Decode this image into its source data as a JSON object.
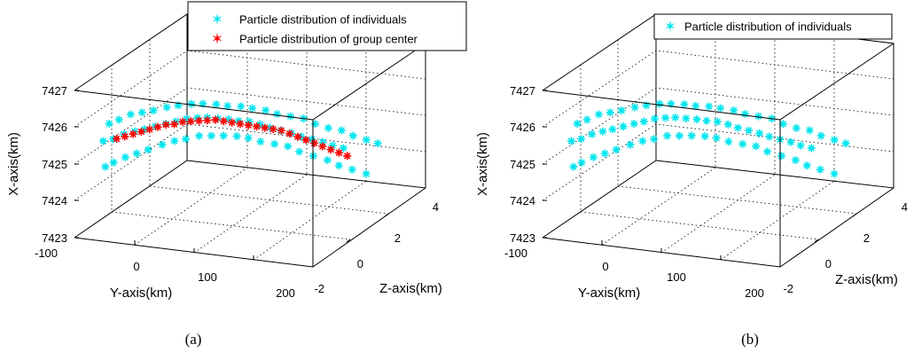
{
  "chart_data": [
    {
      "type": "scatter",
      "caption": "(a)",
      "xlabel": "Y-axis(km)",
      "ylabel": "Z-axis(km)",
      "zlabel": "X-axis(km)",
      "xlim": [
        -100,
        200
      ],
      "ylim": [
        -2,
        4
      ],
      "zlim": [
        7423,
        7427
      ],
      "xticks": [
        "-100",
        "0",
        "100",
        "200"
      ],
      "yticks": [
        "-2",
        "0",
        "2",
        "4"
      ],
      "zticks": [
        "7423",
        "7424",
        "7425",
        "7426",
        "7427"
      ],
      "grid": true,
      "legend_position": "top-right",
      "series": [
        {
          "name": "Particle distribution of individuals",
          "color": "#00e5ee",
          "marker": "star",
          "points": [
            [
              -80,
              -1.2,
              7424.7
            ],
            [
              -72,
              -1.1,
              7424.8
            ],
            [
              -62,
              -0.9,
              7424.9
            ],
            [
              -50,
              -0.8,
              7425.0
            ],
            [
              -38,
              -0.7,
              7425.1
            ],
            [
              -25,
              -0.5,
              7425.2
            ],
            [
              -12,
              -0.4,
              7425.3
            ],
            [
              0,
              -0.3,
              7425.35
            ],
            [
              12,
              -0.1,
              7425.4
            ],
            [
              25,
              0.0,
              7425.4
            ],
            [
              38,
              0.1,
              7425.4
            ],
            [
              50,
              0.3,
              7425.35
            ],
            [
              62,
              0.4,
              7425.3
            ],
            [
              75,
              0.5,
              7425.2
            ],
            [
              88,
              0.7,
              7425.1
            ],
            [
              100,
              0.9,
              7425.0
            ],
            [
              112,
              1.0,
              7424.85
            ],
            [
              125,
              1.2,
              7424.7
            ],
            [
              138,
              1.4,
              7424.55
            ],
            [
              150,
              1.5,
              7424.4
            ],
            [
              162,
              1.7,
              7424.25
            ],
            [
              175,
              1.9,
              7424.1
            ],
            [
              -80,
              -1.0,
              7425.8
            ],
            [
              -70,
              -0.9,
              7425.9
            ],
            [
              -60,
              -0.7,
              7426.0
            ],
            [
              -48,
              -0.6,
              7426.05
            ],
            [
              -36,
              -0.5,
              7426.1
            ],
            [
              -24,
              -0.3,
              7426.15
            ],
            [
              -12,
              -0.2,
              7426.2
            ],
            [
              0,
              0.0,
              7426.2
            ],
            [
              12,
              0.1,
              7426.2
            ],
            [
              24,
              0.3,
              7426.15
            ],
            [
              36,
              0.4,
              7426.1
            ],
            [
              48,
              0.6,
              7426.05
            ],
            [
              60,
              0.7,
              7426.0
            ],
            [
              72,
              0.9,
              7425.9
            ],
            [
              84,
              1.0,
              7425.8
            ],
            [
              96,
              1.2,
              7425.7
            ],
            [
              108,
              1.4,
              7425.6
            ],
            [
              120,
              1.5,
              7425.45
            ],
            [
              132,
              1.7,
              7425.3
            ],
            [
              144,
              1.9,
              7425.2
            ],
            [
              156,
              2.0,
              7425.05
            ],
            [
              168,
              2.2,
              7424.9
            ],
            [
              180,
              2.3,
              7424.8
            ],
            [
              -85,
              -1.1,
              7425.35
            ],
            [
              -75,
              -1.0,
              7425.4
            ],
            [
              -65,
              -0.85,
              7425.5
            ],
            [
              -55,
              -0.7,
              7425.55
            ],
            [
              -45,
              -0.6,
              7425.6
            ],
            [
              -35,
              -0.45,
              7425.65
            ],
            [
              -25,
              -0.3,
              7425.7
            ],
            [
              -15,
              -0.2,
              7425.75
            ],
            [
              -5,
              -0.05,
              7425.8
            ],
            [
              5,
              0.1,
              7425.8
            ],
            [
              15,
              0.2,
              7425.8
            ],
            [
              25,
              0.35,
              7425.75
            ],
            [
              35,
              0.5,
              7425.7
            ],
            [
              45,
              0.6,
              7425.65
            ],
            [
              55,
              0.75,
              7425.6
            ],
            [
              65,
              0.9,
              7425.5
            ],
            [
              75,
              1.0,
              7425.4
            ],
            [
              85,
              1.15,
              7425.3
            ],
            [
              95,
              1.3,
              7425.2
            ],
            [
              105,
              1.4,
              7425.1
            ],
            [
              115,
              1.55,
              7425.0
            ],
            [
              125,
              1.7,
              7424.9
            ],
            [
              135,
              1.8,
              7424.8
            ],
            [
              145,
              1.95,
              7424.7
            ]
          ]
        },
        {
          "name": "Particle distribution of group center",
          "color": "#ff0000",
          "marker": "star",
          "points": [
            [
              -80,
              -0.6,
              7425.25
            ],
            [
              -72,
              -0.5,
              7425.3
            ],
            [
              -64,
              -0.4,
              7425.35
            ],
            [
              -56,
              -0.3,
              7425.4
            ],
            [
              -48,
              -0.2,
              7425.45
            ],
            [
              -40,
              -0.1,
              7425.5
            ],
            [
              -32,
              0.0,
              7425.55
            ],
            [
              -24,
              0.1,
              7425.55
            ],
            [
              -16,
              0.2,
              7425.6
            ],
            [
              -8,
              0.3,
              7425.6
            ],
            [
              0,
              0.4,
              7425.6
            ],
            [
              8,
              0.5,
              7425.6
            ],
            [
              16,
              0.6,
              7425.6
            ],
            [
              24,
              0.7,
              7425.55
            ],
            [
              32,
              0.8,
              7425.5
            ],
            [
              40,
              0.9,
              7425.45
            ],
            [
              48,
              1.0,
              7425.4
            ],
            [
              56,
              1.1,
              7425.35
            ],
            [
              64,
              1.2,
              7425.3
            ],
            [
              72,
              1.3,
              7425.25
            ],
            [
              80,
              1.4,
              7425.2
            ],
            [
              88,
              1.5,
              7425.1
            ],
            [
              96,
              1.6,
              7425.0
            ],
            [
              104,
              1.7,
              7424.9
            ],
            [
              112,
              1.8,
              7424.8
            ],
            [
              120,
              1.9,
              7424.7
            ],
            [
              128,
              2.0,
              7424.6
            ],
            [
              136,
              2.1,
              7424.5
            ],
            [
              144,
              2.2,
              7424.4
            ]
          ]
        }
      ]
    },
    {
      "type": "scatter",
      "caption": "(b)",
      "xlabel": "Y-axis(km)",
      "ylabel": "Z-axis(km)",
      "zlabel": "X-axis(km)",
      "xlim": [
        -100,
        200
      ],
      "ylim": [
        -2,
        4
      ],
      "zlim": [
        7423,
        7427
      ],
      "xticks": [
        "-100",
        "0",
        "100",
        "200"
      ],
      "yticks": [
        "-2",
        "0",
        "2",
        "4"
      ],
      "zticks": [
        "7423",
        "7424",
        "7425",
        "7426",
        "7427"
      ],
      "grid": true,
      "legend_position": "top-right",
      "series": [
        {
          "name": "Particle distribution of individuals",
          "color": "#00e5ee",
          "marker": "star",
          "points": [
            [
              -80,
              -1.2,
              7424.7
            ],
            [
              -72,
              -1.1,
              7424.8
            ],
            [
              -62,
              -0.9,
              7424.9
            ],
            [
              -50,
              -0.8,
              7425.0
            ],
            [
              -38,
              -0.7,
              7425.1
            ],
            [
              -25,
              -0.5,
              7425.2
            ],
            [
              -12,
              -0.4,
              7425.3
            ],
            [
              0,
              -0.3,
              7425.35
            ],
            [
              12,
              -0.1,
              7425.4
            ],
            [
              25,
              0.0,
              7425.4
            ],
            [
              38,
              0.1,
              7425.4
            ],
            [
              50,
              0.3,
              7425.35
            ],
            [
              62,
              0.4,
              7425.3
            ],
            [
              75,
              0.5,
              7425.2
            ],
            [
              88,
              0.7,
              7425.1
            ],
            [
              100,
              0.9,
              7425.0
            ],
            [
              112,
              1.0,
              7424.85
            ],
            [
              125,
              1.2,
              7424.7
            ],
            [
              138,
              1.4,
              7424.55
            ],
            [
              150,
              1.5,
              7424.4
            ],
            [
              162,
              1.7,
              7424.25
            ],
            [
              175,
              1.9,
              7424.1
            ],
            [
              -80,
              -1.0,
              7425.8
            ],
            [
              -70,
              -0.9,
              7425.9
            ],
            [
              -60,
              -0.7,
              7426.0
            ],
            [
              -48,
              -0.6,
              7426.05
            ],
            [
              -36,
              -0.5,
              7426.1
            ],
            [
              -24,
              -0.3,
              7426.15
            ],
            [
              -12,
              -0.2,
              7426.2
            ],
            [
              0,
              0.0,
              7426.2
            ],
            [
              12,
              0.1,
              7426.2
            ],
            [
              24,
              0.3,
              7426.15
            ],
            [
              36,
              0.4,
              7426.1
            ],
            [
              48,
              0.6,
              7426.05
            ],
            [
              60,
              0.7,
              7426.0
            ],
            [
              72,
              0.9,
              7425.9
            ],
            [
              84,
              1.0,
              7425.8
            ],
            [
              96,
              1.2,
              7425.7
            ],
            [
              108,
              1.4,
              7425.6
            ],
            [
              120,
              1.5,
              7425.45
            ],
            [
              132,
              1.7,
              7425.3
            ],
            [
              144,
              1.9,
              7425.2
            ],
            [
              156,
              2.0,
              7425.05
            ],
            [
              168,
              2.2,
              7424.9
            ],
            [
              180,
              2.3,
              7424.8
            ],
            [
              -85,
              -1.1,
              7425.35
            ],
            [
              -75,
              -1.0,
              7425.4
            ],
            [
              -65,
              -0.85,
              7425.5
            ],
            [
              -55,
              -0.7,
              7425.55
            ],
            [
              -45,
              -0.6,
              7425.6
            ],
            [
              -35,
              -0.45,
              7425.65
            ],
            [
              -25,
              -0.3,
              7425.7
            ],
            [
              -15,
              -0.2,
              7425.75
            ],
            [
              -5,
              -0.05,
              7425.8
            ],
            [
              5,
              0.1,
              7425.8
            ],
            [
              15,
              0.2,
              7425.8
            ],
            [
              25,
              0.35,
              7425.75
            ],
            [
              35,
              0.5,
              7425.7
            ],
            [
              45,
              0.6,
              7425.65
            ],
            [
              55,
              0.75,
              7425.6
            ],
            [
              65,
              0.9,
              7425.5
            ],
            [
              75,
              1.0,
              7425.4
            ],
            [
              85,
              1.15,
              7425.3
            ],
            [
              95,
              1.3,
              7425.2
            ],
            [
              105,
              1.4,
              7425.1
            ],
            [
              115,
              1.55,
              7425.0
            ],
            [
              125,
              1.7,
              7424.9
            ],
            [
              135,
              1.8,
              7424.8
            ],
            [
              145,
              1.95,
              7424.7
            ]
          ]
        }
      ]
    }
  ]
}
